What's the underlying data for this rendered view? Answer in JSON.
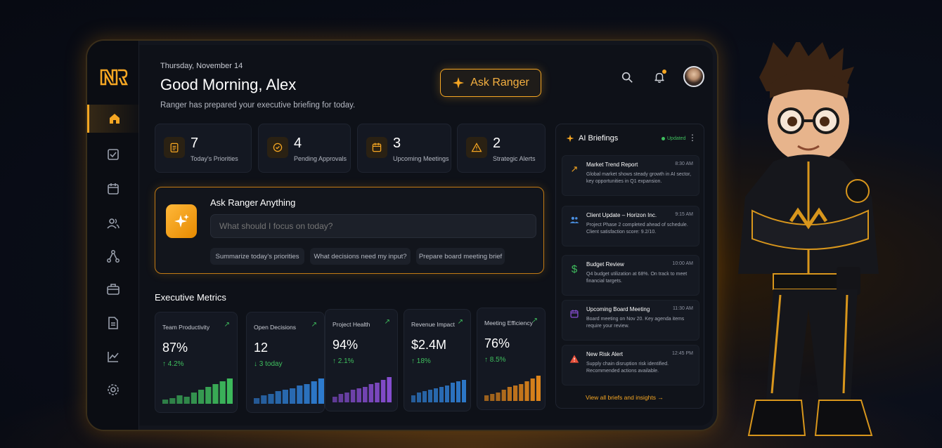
{
  "header": {
    "date": "Thursday, November 14",
    "greeting": "Good Morning, Alex",
    "subtitle": "Ranger has prepared your executive briefing for today.",
    "ask_button_label": "Ask Ranger"
  },
  "brand": {
    "logo_text": "NR",
    "accent_color": "#f5a623"
  },
  "sidebar": {
    "items": [
      {
        "icon": "home-icon",
        "active": true
      },
      {
        "icon": "tasks-icon",
        "active": false
      },
      {
        "icon": "calendar-icon",
        "active": false
      },
      {
        "icon": "users-icon",
        "active": false
      },
      {
        "icon": "network-icon",
        "active": false
      },
      {
        "icon": "briefcase-icon",
        "active": false
      },
      {
        "icon": "document-icon",
        "active": false
      },
      {
        "icon": "analytics-icon",
        "active": false
      },
      {
        "icon": "settings-icon",
        "active": false
      }
    ]
  },
  "stats": [
    {
      "value": "7",
      "label": "Today's Priorities",
      "icon": "clipboard-icon"
    },
    {
      "value": "4",
      "label": "Pending Approvals",
      "icon": "check-circle-icon"
    },
    {
      "value": "3",
      "label": "Upcoming Meetings",
      "icon": "calendar-icon"
    },
    {
      "value": "2",
      "label": "Strategic Alerts",
      "icon": "warning-icon"
    }
  ],
  "ask_panel": {
    "title": "Ask Ranger Anything",
    "placeholder": "What should I focus on today?",
    "chips": [
      "Summarize today's priorities",
      "What decisions need my input?",
      "Prepare board meeting brief"
    ]
  },
  "metrics_section": {
    "title": "Executive Metrics",
    "metrics": [
      {
        "label": "Team Productivity",
        "value": "87%",
        "change": "↑ 4.2%",
        "change_color": "#3fbf5e",
        "bar_color": "#3fbf5e",
        "bars": [
          0.15,
          0.2,
          0.3,
          0.25,
          0.4,
          0.5,
          0.6,
          0.7,
          0.8,
          0.9
        ]
      },
      {
        "label": "Open Decisions",
        "value": "12",
        "change": "↓ 3 today",
        "change_color": "#3fbf5e",
        "bar_color": "#2f7fd6",
        "bars": [
          0.2,
          0.3,
          0.35,
          0.45,
          0.5,
          0.55,
          0.65,
          0.7,
          0.8,
          0.9
        ]
      },
      {
        "label": "Project Health",
        "value": "94%",
        "change": "↑ 2.1%",
        "change_color": "#3fbf5e",
        "bar_color": "#8a4fd6",
        "bars": [
          0.2,
          0.3,
          0.35,
          0.45,
          0.5,
          0.55,
          0.65,
          0.7,
          0.8,
          0.9
        ]
      },
      {
        "label": "Revenue Impact",
        "value": "$2.4M",
        "change": "↑ 18%",
        "change_color": "#3fbf5e",
        "bar_color": "#2f7fd6",
        "bars": [
          0.25,
          0.35,
          0.4,
          0.45,
          0.5,
          0.55,
          0.6,
          0.7,
          0.75,
          0.8
        ]
      },
      {
        "label": "Meeting Efficiency",
        "value": "76%",
        "change": "↑ 8.5%",
        "change_color": "#3fbf5e",
        "bar_color": "#e8891a",
        "bars": [
          0.2,
          0.25,
          0.3,
          0.4,
          0.5,
          0.55,
          0.6,
          0.7,
          0.8,
          0.9
        ]
      }
    ]
  },
  "briefings": {
    "title": "AI Briefings",
    "status": "Updated",
    "items": [
      {
        "title": "Market Trend Report",
        "time": "8:30 AM",
        "text": "Global market shows steady growth in AI sector, key opportunities in Q1 expansion.",
        "icon": "trend-up-icon",
        "color": "#f5a623"
      },
      {
        "title": "Client Update – Horizon Inc.",
        "time": "9:15 AM",
        "text": "Project Phase 2 completed ahead of schedule. Client satisfaction score: 9.2/10.",
        "icon": "people-icon",
        "color": "#4a8fe0"
      },
      {
        "title": "Budget Review",
        "time": "10:00 AM",
        "text": "Q4 budget utilization at 68%. On track to meet financial targets.",
        "icon": "dollar-icon",
        "color": "#3fbf5e"
      },
      {
        "title": "Upcoming Board Meeting",
        "time": "11:30 AM",
        "text": "Board meeting on Nov 20. Key agenda items require your review.",
        "icon": "calendar-icon",
        "color": "#8a4fd6"
      },
      {
        "title": "New Risk Alert",
        "time": "12:45 PM",
        "text": "Supply chain disruption risk identified. Recommended actions available.",
        "icon": "alert-icon",
        "color": "#e8503a"
      }
    ],
    "view_all": "View all briefs and insights →"
  }
}
